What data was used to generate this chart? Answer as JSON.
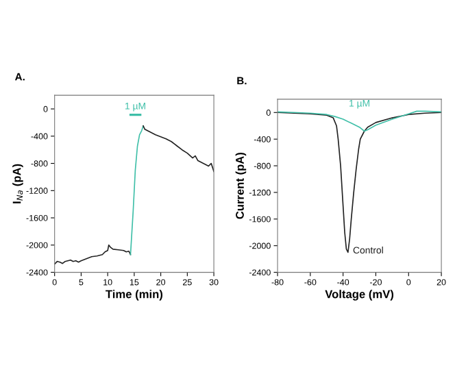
{
  "chart_data": [
    {
      "type": "line",
      "title": "A.",
      "xlabel": "Time (min)",
      "ylabel": "I$_{Na}$ (pA)",
      "xlim": [
        0,
        30
      ],
      "xticks": [
        0,
        5,
        10,
        15,
        20,
        25,
        30
      ],
      "ylim": [
        -2400,
        200
      ],
      "yticks": [
        0,
        -400,
        -800,
        -1200,
        -1600,
        -2000,
        -2400
      ],
      "grid": false,
      "legend": false,
      "annotations": [
        "1 µM"
      ],
      "series": [
        {
          "color": "#222222",
          "x": [
            0,
            0.5,
            1,
            1.5,
            2,
            2.5,
            3,
            3.5,
            4,
            4.5,
            5,
            6,
            7,
            8,
            9,
            9.5,
            10,
            10.2,
            10.5,
            11,
            12,
            13,
            13.5,
            14,
            14.3
          ],
          "values": [
            -2280,
            -2240,
            -2250,
            -2270,
            -2240,
            -2230,
            -2220,
            -2240,
            -2230,
            -2250,
            -2230,
            -2200,
            -2170,
            -2160,
            -2140,
            -2100,
            -2080,
            -2000,
            -2030,
            -2060,
            -2070,
            -2080,
            -2100,
            -2090,
            -2140
          ]
        },
        {
          "color": "#3fbfa8",
          "x": [
            14.3,
            14.8,
            15.2,
            15.6,
            16,
            16.4,
            16.7
          ],
          "values": [
            -2140,
            -1500,
            -900,
            -550,
            -380,
            -320,
            -250
          ]
        },
        {
          "color": "#222222",
          "x": [
            16.7,
            17,
            17.5,
            18,
            19,
            20,
            21,
            22,
            23,
            24,
            25,
            26,
            26.5,
            27,
            28,
            29,
            29.5,
            30
          ],
          "values": [
            -250,
            -300,
            -320,
            -340,
            -380,
            -410,
            -440,
            -480,
            -540,
            -600,
            -650,
            -720,
            -690,
            -760,
            -800,
            -840,
            -800,
            -920
          ]
        }
      ]
    },
    {
      "type": "line",
      "title": "B.",
      "xlabel": "Voltage (mV)",
      "ylabel": "Current (pA)",
      "xlim": [
        -80,
        20
      ],
      "xticks": [
        -80,
        -60,
        -40,
        -20,
        0,
        20
      ],
      "ylim": [
        -2400,
        200
      ],
      "yticks": [
        0,
        -400,
        -800,
        -1200,
        -1600,
        -2000,
        -2400
      ],
      "grid": false,
      "legend": false,
      "series": [
        {
          "name": "Control",
          "color": "#222222",
          "x": [
            -80,
            -70,
            -60,
            -50,
            -46,
            -44,
            -43,
            -41.5,
            -40,
            -39,
            -38,
            -37,
            -36,
            -35,
            -33.5,
            -32,
            -30.5,
            -29.5,
            -27,
            -25,
            -20,
            -10,
            0,
            10,
            20
          ],
          "values": [
            0,
            -10,
            -20,
            -40,
            -80,
            -200,
            -400,
            -800,
            -1400,
            -1800,
            -2050,
            -2100,
            -1900,
            -1600,
            -1200,
            -850,
            -550,
            -400,
            -280,
            -220,
            -150,
            -80,
            -30,
            -10,
            0
          ]
        },
        {
          "name": "1 µM",
          "color": "#3fbfa8",
          "x": [
            -80,
            -70,
            -60,
            -50,
            -45,
            -40,
            -35,
            -30,
            -27,
            -25,
            -20,
            -10,
            0,
            5,
            10,
            20
          ],
          "values": [
            10,
            0,
            -10,
            -30,
            -60,
            -100,
            -160,
            -220,
            -280,
            -260,
            -190,
            -100,
            -20,
            20,
            20,
            10
          ]
        }
      ]
    }
  ]
}
